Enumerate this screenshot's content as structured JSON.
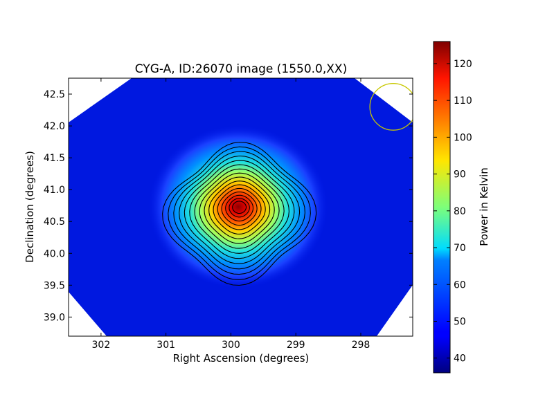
{
  "chart_data": {
    "type": "heatmap",
    "title": "CYG-A, ID:26070 image (1550.0,XX)",
    "xlabel": "Right Ascension (degrees)",
    "ylabel": "Declination (degrees)",
    "xlim": [
      302.5,
      297.2
    ],
    "ylim": [
      38.7,
      42.75
    ],
    "x_ticks": [
      "302",
      "301",
      "300",
      "299",
      "298"
    ],
    "x_tick_values": [
      302,
      301,
      300,
      299,
      298
    ],
    "y_ticks": [
      "39.0",
      "39.5",
      "40.0",
      "40.5",
      "41.0",
      "41.5",
      "42.0",
      "42.5"
    ],
    "y_tick_values": [
      39.0,
      39.5,
      40.0,
      40.5,
      41.0,
      41.5,
      42.0,
      42.5
    ],
    "source": {
      "ra": 299.87,
      "dec": 40.73,
      "peak": 126
    },
    "background_level": 40,
    "colormap": "jet",
    "contours": {
      "color": "#000000",
      "count": 16
    },
    "beam_circle": {
      "ra": 297.5,
      "dec": 42.3,
      "radius_deg": 0.36,
      "color": "#c8c800"
    },
    "colorbar": {
      "label": "Power in Kelvin",
      "range": [
        36,
        126
      ],
      "ticks": [
        "40",
        "50",
        "60",
        "70",
        "80",
        "90",
        "100",
        "110",
        "120"
      ],
      "tick_values": [
        40,
        50,
        60,
        70,
        80,
        90,
        100,
        110,
        120
      ]
    }
  }
}
